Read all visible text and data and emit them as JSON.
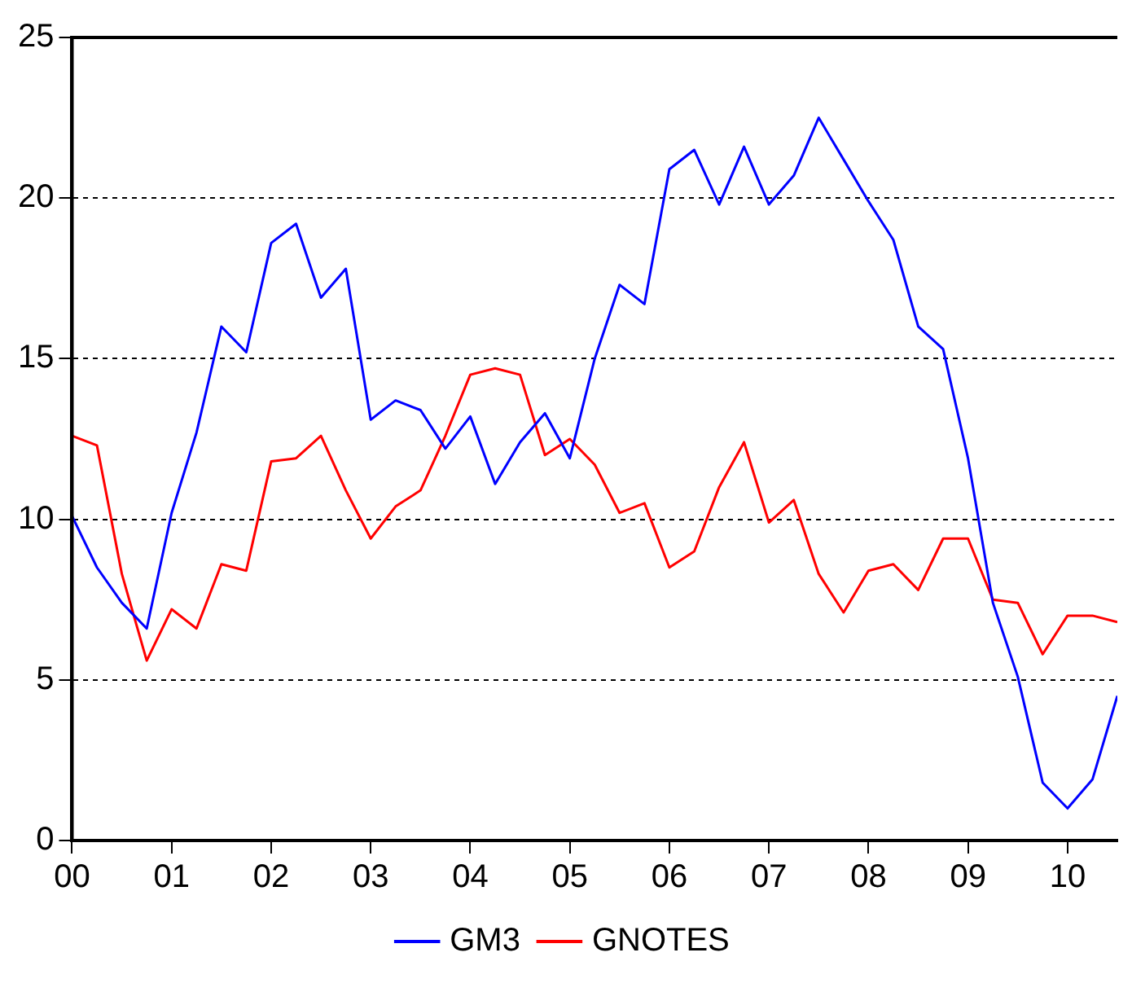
{
  "chart_data": {
    "type": "line",
    "x": [
      2000,
      2000.25,
      2000.5,
      2000.75,
      2001,
      2001.25,
      2001.5,
      2001.75,
      2002,
      2002.25,
      2002.5,
      2002.75,
      2003,
      2003.25,
      2003.5,
      2003.75,
      2004,
      2004.25,
      2004.5,
      2004.75,
      2005,
      2005.25,
      2005.5,
      2005.75,
      2006,
      2006.25,
      2006.5,
      2006.75,
      2007,
      2007.25,
      2007.5,
      2007.75,
      2008,
      2008.25,
      2008.5,
      2008.75,
      2009,
      2009.25,
      2009.5,
      2009.75,
      2010,
      2010.25,
      2010.5
    ],
    "series": [
      {
        "name": "GM3",
        "color": "#0000ff",
        "values": [
          10.1,
          8.5,
          7.4,
          6.6,
          10.2,
          12.7,
          16.0,
          15.2,
          18.6,
          19.2,
          16.9,
          17.8,
          13.1,
          13.7,
          13.4,
          12.2,
          13.2,
          11.1,
          12.4,
          13.3,
          11.9,
          15.0,
          17.3,
          16.7,
          20.9,
          21.5,
          19.8,
          21.6,
          19.8,
          20.7,
          22.5,
          21.2,
          19.9,
          18.7,
          16.0,
          15.3,
          11.9,
          7.4,
          5.1,
          1.8,
          1.0,
          1.9,
          4.5
        ]
      },
      {
        "name": "GNOTES",
        "color": "#ff0000",
        "values": [
          12.6,
          12.3,
          8.3,
          5.6,
          7.2,
          6.6,
          8.6,
          8.4,
          11.8,
          11.9,
          12.6,
          10.9,
          9.4,
          10.4,
          10.9,
          12.6,
          14.5,
          14.7,
          14.5,
          12.0,
          12.5,
          11.7,
          10.2,
          10.5,
          8.5,
          9.0,
          11.0,
          12.4,
          9.9,
          10.6,
          8.3,
          7.1,
          8.4,
          8.6,
          7.8,
          9.4,
          9.4,
          7.5,
          7.4,
          5.8,
          7.0,
          7.0,
          6.8
        ]
      }
    ],
    "xlim": [
      2000,
      2010.5
    ],
    "xticks": [
      {
        "value": 2000,
        "label": "00"
      },
      {
        "value": 2001,
        "label": "01"
      },
      {
        "value": 2002,
        "label": "02"
      },
      {
        "value": 2003,
        "label": "03"
      },
      {
        "value": 2004,
        "label": "04"
      },
      {
        "value": 2005,
        "label": "05"
      },
      {
        "value": 2006,
        "label": "06"
      },
      {
        "value": 2007,
        "label": "07"
      },
      {
        "value": 2008,
        "label": "08"
      },
      {
        "value": 2009,
        "label": "09"
      },
      {
        "value": 2010,
        "label": "10"
      }
    ],
    "ylim": [
      0,
      25
    ],
    "yticks": [
      0,
      5,
      10,
      15,
      20,
      25
    ],
    "grid": "y",
    "legend": "bottom",
    "marker": "none",
    "line_style": "solid"
  }
}
